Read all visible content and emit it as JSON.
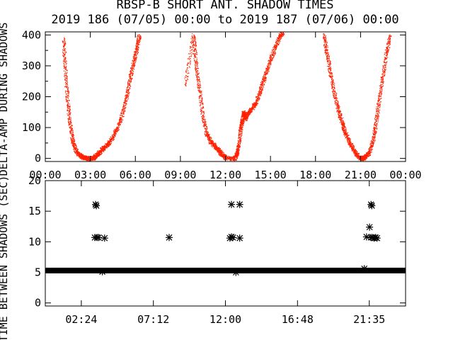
{
  "title": "RBSP-B SHORT ANT. SHADOW TIMES",
  "subtitle": "2019 186 (07/05) 00:00 to 2019 187 (07/06) 00:00",
  "colors": {
    "points": "#ff2000",
    "stars": "#000000",
    "axes": "#000000",
    "background": "#ffffff"
  },
  "chart_data": [
    {
      "type": "scatter",
      "ylabel": "DELTA-AMP DURING SHADOWS",
      "xlabel": "",
      "xlim": [
        0,
        24
      ],
      "ylim": [
        -10,
        410
      ],
      "x_ticks": [
        "00:00",
        "03:00",
        "06:00",
        "09:00",
        "12:00",
        "15:00",
        "18:00",
        "21:00",
        "00:00"
      ],
      "y_ticks": [
        "0",
        "100",
        "200",
        "300",
        "400"
      ],
      "grid": false,
      "series": [
        {
          "color": "#ff2000",
          "description_points": [
            [
              1.2,
              390
            ],
            [
              1.3,
              300
            ],
            [
              1.45,
              200
            ],
            [
              1.6,
              120
            ],
            [
              1.8,
              60
            ],
            [
              2.0,
              28
            ],
            [
              2.25,
              12
            ],
            [
              2.5,
              4
            ],
            [
              2.7,
              2
            ],
            [
              2.85,
              0
            ],
            [
              3.2,
              2
            ],
            [
              3.35,
              10
            ],
            [
              3.6,
              20
            ],
            [
              3.85,
              35
            ],
            [
              4.1,
              45
            ],
            [
              4.4,
              65
            ],
            [
              4.75,
              95
            ],
            [
              5.1,
              140
            ],
            [
              5.4,
              200
            ],
            [
              5.65,
              265
            ],
            [
              5.9,
              320
            ],
            [
              6.1,
              360
            ],
            [
              6.25,
              400
            ],
            [
              9.3,
              240
            ],
            [
              9.85,
              400
            ],
            [
              10.0,
              320
            ],
            [
              10.2,
              240
            ],
            [
              10.45,
              150
            ],
            [
              10.7,
              85
            ],
            [
              11.0,
              55
            ],
            [
              11.3,
              40
            ],
            [
              11.55,
              25
            ],
            [
              11.8,
              12
            ],
            [
              12.0,
              3
            ],
            [
              12.6,
              0
            ],
            [
              12.75,
              15
            ],
            [
              12.85,
              40
            ],
            [
              13.0,
              95
            ],
            [
              13.1,
              120
            ],
            [
              13.2,
              150
            ],
            [
              13.3,
              128
            ],
            [
              13.45,
              145
            ],
            [
              13.7,
              160
            ],
            [
              14.0,
              180
            ],
            [
              14.3,
              220
            ],
            [
              14.6,
              265
            ],
            [
              14.9,
              310
            ],
            [
              15.25,
              355
            ],
            [
              15.6,
              395
            ],
            [
              15.8,
              410
            ],
            [
              18.55,
              400
            ],
            [
              18.75,
              340
            ],
            [
              19.0,
              270
            ],
            [
              19.3,
              200
            ],
            [
              19.55,
              150
            ],
            [
              19.8,
              110
            ],
            [
              20.0,
              80
            ],
            [
              20.3,
              50
            ],
            [
              20.6,
              20
            ],
            [
              20.9,
              5
            ],
            [
              21.1,
              0
            ],
            [
              21.3,
              5
            ],
            [
              21.55,
              20
            ],
            [
              21.8,
              55
            ],
            [
              22.0,
              110
            ],
            [
              22.2,
              180
            ],
            [
              22.45,
              260
            ],
            [
              22.7,
              340
            ],
            [
              22.95,
              400
            ]
          ]
        }
      ]
    },
    {
      "type": "scatter",
      "ylabel": "TIME BETWEEN SHADOWS (SEC)",
      "xlabel": "",
      "xlim": [
        0,
        24
      ],
      "ylim": [
        -0.5,
        20
      ],
      "x_ticks": [
        "02:24",
        "07:12",
        "12:00",
        "16:48",
        "21:35"
      ],
      "x_tick_values": [
        2.4,
        7.2,
        12.0,
        16.8,
        21.583
      ],
      "y_ticks": [
        "0",
        "5",
        "10",
        "15",
        "20"
      ],
      "grid": false,
      "series": [
        {
          "color": "#000000",
          "marker": "*",
          "band": {
            "y": 5.3,
            "x_from": 0,
            "x_to": 24
          },
          "points": [
            [
              3.35,
              16.1
            ],
            [
              3.4,
              15.9
            ],
            [
              3.3,
              10.7
            ],
            [
              3.45,
              10.7
            ],
            [
              3.55,
              10.7
            ],
            [
              3.95,
              10.6
            ],
            [
              3.8,
              5.1
            ],
            [
              8.25,
              10.7
            ],
            [
              12.4,
              16.1
            ],
            [
              12.4,
              10.8
            ],
            [
              12.5,
              10.7
            ],
            [
              12.3,
              10.6
            ],
            [
              12.95,
              16.1
            ],
            [
              12.95,
              10.6
            ],
            [
              12.7,
              5.0
            ],
            [
              21.4,
              10.8
            ],
            [
              21.6,
              12.4
            ],
            [
              21.7,
              16.1
            ],
            [
              21.75,
              15.9
            ],
            [
              21.7,
              10.7
            ],
            [
              21.8,
              10.7
            ],
            [
              21.9,
              10.6
            ],
            [
              22.0,
              10.7
            ],
            [
              22.1,
              10.6
            ],
            [
              21.25,
              5.6
            ]
          ]
        }
      ]
    }
  ]
}
